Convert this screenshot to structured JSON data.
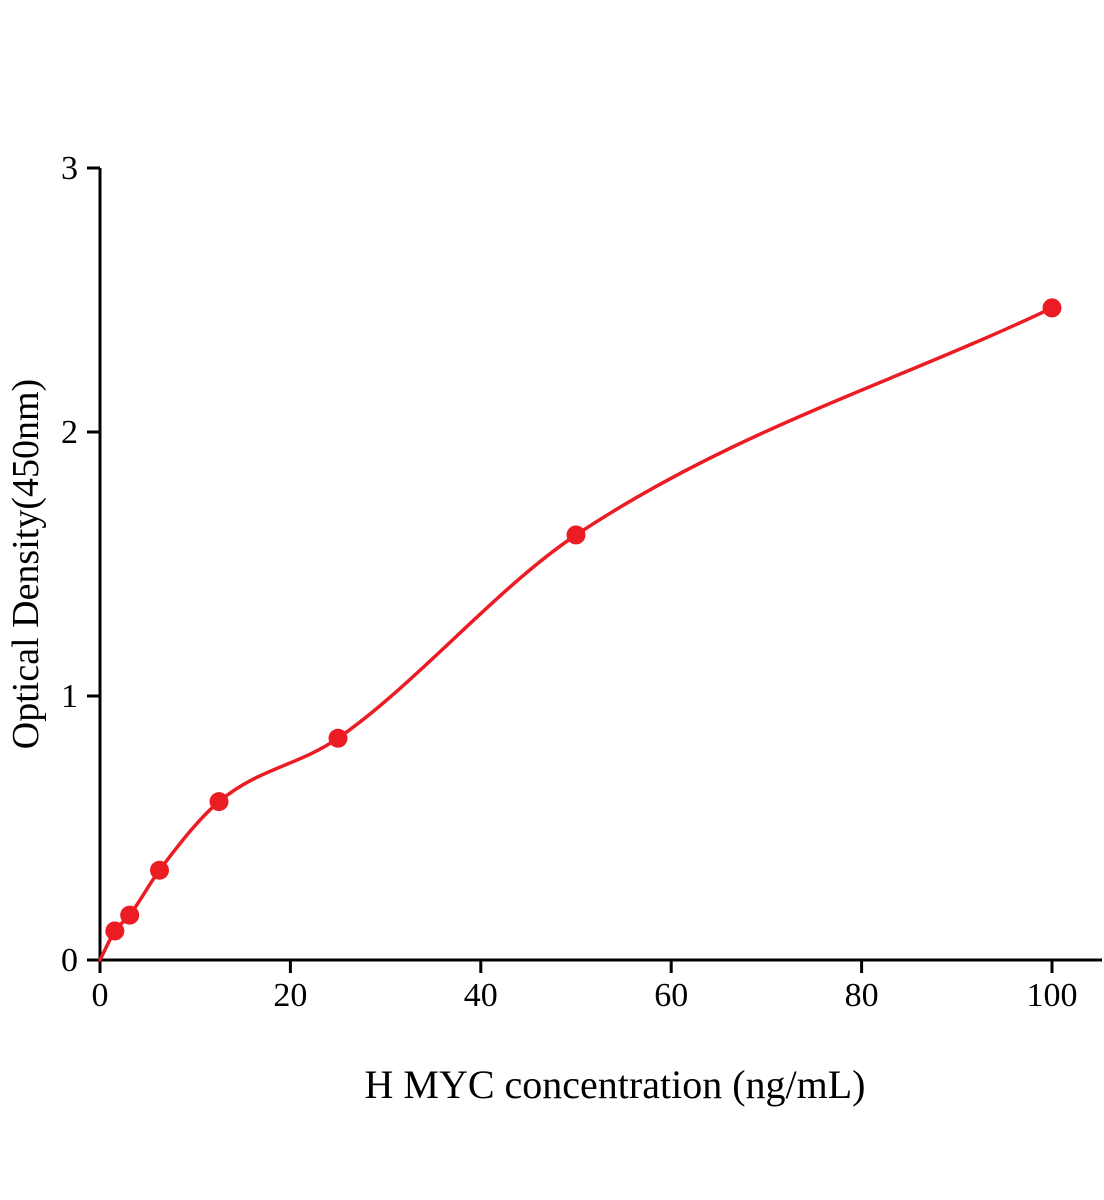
{
  "chart_data": {
    "type": "scatter",
    "title": "",
    "xlabel": "H MYC concentration (ng/mL)",
    "ylabel": "Optical Density(450nm)",
    "x": [
      1.56,
      3.12,
      6.25,
      12.5,
      25,
      50,
      100
    ],
    "y": [
      0.11,
      0.17,
      0.34,
      0.6,
      0.84,
      1.61,
      2.47
    ],
    "curve_start": {
      "x": 0,
      "y": 0
    },
    "x_ticks": [
      0,
      20,
      40,
      60,
      80,
      100
    ],
    "y_ticks": [
      0,
      1,
      2,
      3
    ],
    "xlim": [
      0,
      105.5
    ],
    "ylim": [
      0,
      3
    ],
    "grid": false,
    "legend": false,
    "point_color": "#ec1c24",
    "line_color": "#ec1c24",
    "axis_color": "#000000"
  }
}
